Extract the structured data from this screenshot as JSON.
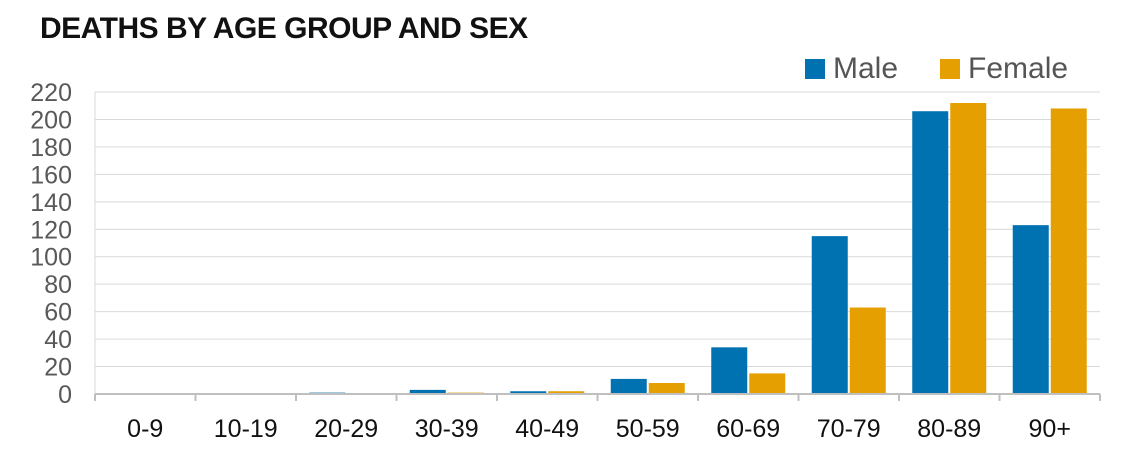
{
  "chart_data": {
    "type": "bar",
    "title": "DEATHS BY AGE GROUP AND SEX",
    "xlabel": "",
    "ylabel": "",
    "categories": [
      "0-9",
      "10-19",
      "20-29",
      "30-39",
      "40-49",
      "50-59",
      "60-69",
      "70-79",
      "80-89",
      "90+"
    ],
    "series": [
      {
        "name": "Male",
        "color": "#0072B2",
        "values": [
          0,
          0,
          1,
          3,
          2,
          11,
          34,
          115,
          206,
          123
        ]
      },
      {
        "name": "Female",
        "color": "#E69F00",
        "values": [
          0,
          0,
          0,
          1,
          2,
          8,
          15,
          63,
          212,
          208
        ]
      }
    ],
    "ylim": [
      0,
      220
    ],
    "yticks": [
      "0",
      "20",
      "40",
      "60",
      "80",
      "100",
      "120",
      "140",
      "160",
      "180",
      "200",
      "220"
    ],
    "grid": true,
    "legend": "top-right"
  }
}
